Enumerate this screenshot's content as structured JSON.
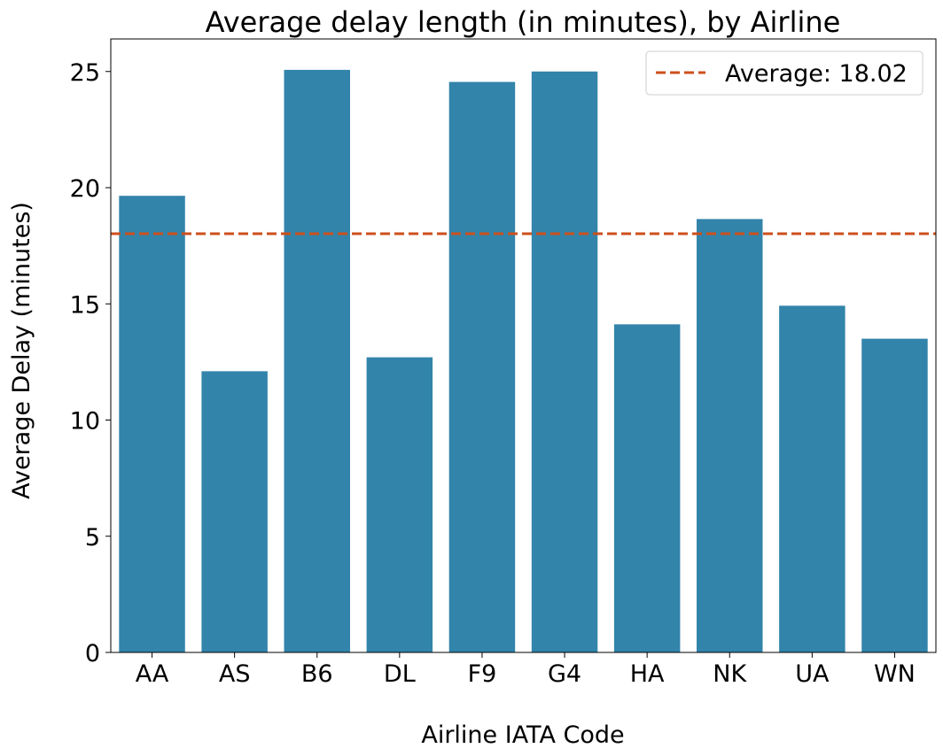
{
  "chart_data": {
    "type": "bar",
    "title": "Average delay length (in minutes), by Airline",
    "xlabel": "Airline IATA Code",
    "ylabel": "Average Delay (minutes)",
    "categories": [
      "AA",
      "AS",
      "B6",
      "DL",
      "F9",
      "G4",
      "HA",
      "NK",
      "UA",
      "WN"
    ],
    "values": [
      19.65,
      12.1,
      25.07,
      12.7,
      24.55,
      25.0,
      14.12,
      18.65,
      14.92,
      13.5
    ],
    "ylim": [
      0,
      26.4
    ],
    "yticks": [
      0,
      5,
      10,
      15,
      20,
      25
    ],
    "grid": false,
    "average_line": {
      "value": 18.02,
      "label": "Average: 18.02"
    },
    "legend": {
      "position": "top-right",
      "entries": [
        "Average: 18.02"
      ]
    },
    "colors": {
      "bar": "#3284aa",
      "average_line": "#cd4f1c"
    }
  }
}
